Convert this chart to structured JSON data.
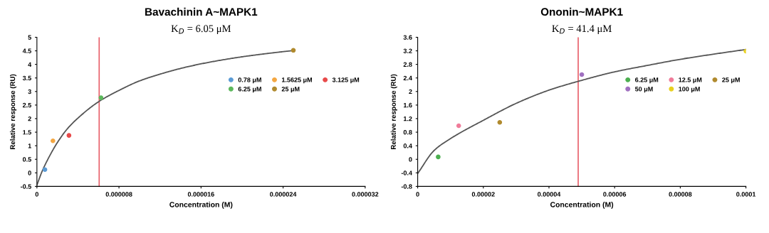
{
  "chart_data": [
    {
      "type": "scatter",
      "title": "Bavachinin A~MAPK1",
      "subtitle": "K$_{D}$ = 6.05 μM",
      "xlabel": "Concentration (M)",
      "ylabel": "Relative response (RU)",
      "xlim": [
        0,
        3.2e-05
      ],
      "xticks": [
        0,
        {
          "value": 8e-06,
          "label": "0.000008"
        },
        {
          "value": 1.6e-05,
          "label": "0.000016"
        },
        {
          "value": 2.4e-05,
          "label": "0.000024"
        },
        {
          "value": 3.2e-05,
          "label": "0.000032"
        }
      ],
      "ylim": [
        -0.5,
        5
      ],
      "yticks": [
        -0.5,
        0,
        0.5,
        1,
        1.5,
        2,
        2.5,
        3,
        3.5,
        4,
        4.5,
        5
      ],
      "grid": false,
      "legend": "right",
      "marker": "circle",
      "series": [
        {
          "name": "0.78 μM",
          "color": "#5b9bd5",
          "x": [
            7.8e-07
          ],
          "values": [
            0.12
          ]
        },
        {
          "name": "1.5625 μM",
          "color": "#f4a742",
          "x": [
            1.5625e-06
          ],
          "values": [
            1.18
          ]
        },
        {
          "name": "3.125 μM",
          "color": "#e84a4a",
          "x": [
            3.125e-06
          ],
          "values": [
            1.38
          ]
        },
        {
          "name": "6.25 μM",
          "color": "#5cb85c",
          "x": [
            6.25e-06
          ],
          "values": [
            2.77
          ]
        },
        {
          "name": "25 μM",
          "color": "#b08a2e",
          "x": [
            2.5e-05
          ],
          "values": [
            4.52
          ]
        },
        {
          "type": "line",
          "color": "#555555",
          "marker": "none",
          "x": [
            0,
            5e-07,
            1e-06,
            2e-06,
            3e-06,
            4e-06,
            6e-06,
            8e-06,
            1e-05,
            1.2e-05,
            1.4e-05,
            1.6e-05,
            1.8e-05,
            2e-05,
            2.2e-05,
            2.4e-05,
            2.5e-05
          ],
          "values": [
            -0.45,
            0.05,
            0.45,
            1.12,
            1.64,
            2.02,
            2.62,
            3.04,
            3.39,
            3.64,
            3.85,
            4.02,
            4.16,
            4.28,
            4.38,
            4.47,
            4.51
          ]
        }
      ],
      "ref_lines": [
        {
          "axis": "x",
          "value": 6.07e-06,
          "color": "#e8606a"
        }
      ]
    },
    {
      "type": "scatter",
      "title": "Ononin~MAPK1",
      "subtitle": "K$_{D}$ = 41.4 μM",
      "xlabel": "Concentration (M)",
      "ylabel": "Relative response (RU)",
      "xlim": [
        0,
        0.0001
      ],
      "xticks": [
        0,
        {
          "value": 2e-05,
          "label": "0.00002"
        },
        {
          "value": 4e-05,
          "label": "0.00004"
        },
        {
          "value": 6e-05,
          "label": "0.00006"
        },
        {
          "value": 8e-05,
          "label": "0.00008"
        },
        {
          "value": 0.0001,
          "label": "0.0001"
        }
      ],
      "ylim": [
        -0.8,
        3.6
      ],
      "yticks": [
        -0.8,
        -0.4,
        0,
        0.4,
        0.8,
        1.2,
        1.6,
        2,
        2.4,
        2.8,
        3.2,
        3.6
      ],
      "grid": false,
      "legend": "right",
      "marker": "circle",
      "series": [
        {
          "name": "6.25 μM",
          "color": "#4caf50",
          "x": [
            6.25e-06
          ],
          "values": [
            0.07
          ]
        },
        {
          "name": "12.5 μM",
          "color": "#f07c9a",
          "x": [
            1.25e-05
          ],
          "values": [
            0.99
          ]
        },
        {
          "name": "25 μM",
          "color": "#b08a2e",
          "x": [
            2.5e-05
          ],
          "values": [
            1.09
          ]
        },
        {
          "name": "50 μM",
          "color": "#a070c0",
          "x": [
            5e-05
          ],
          "values": [
            2.5
          ]
        },
        {
          "name": "100 μM",
          "color": "#e8d020",
          "x": [
            0.0001
          ],
          "values": [
            3.19
          ]
        },
        {
          "type": "line",
          "color": "#555555",
          "marker": "none",
          "x": [
            0,
            5e-06,
            1e-05,
            2e-05,
            3e-05,
            4e-05,
            5e-05,
            6e-05,
            7e-05,
            8e-05,
            9e-05,
            0.0001
          ],
          "values": [
            -0.42,
            0.26,
            0.61,
            1.15,
            1.65,
            2.04,
            2.33,
            2.58,
            2.77,
            2.95,
            3.1,
            3.24
          ]
        }
      ],
      "ref_lines": [
        {
          "axis": "x",
          "value": 4.89e-05,
          "color": "#e8606a"
        }
      ]
    }
  ]
}
